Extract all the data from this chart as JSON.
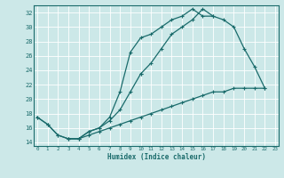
{
  "xlabel": "Humidex (Indice chaleur)",
  "bg_color": "#cce8e8",
  "line_color": "#1a6b6b",
  "grid_color": "#ffffff",
  "x": [
    0,
    1,
    2,
    3,
    4,
    5,
    6,
    7,
    8,
    9,
    10,
    11,
    12,
    13,
    14,
    15,
    16,
    17,
    18,
    19,
    20,
    21,
    22,
    23
  ],
  "ylim": [
    13.5,
    33
  ],
  "xlim": [
    -0.3,
    23.3
  ],
  "yticks": [
    14,
    16,
    18,
    20,
    22,
    24,
    26,
    28,
    30,
    32
  ],
  "curve1": [
    17.5,
    16.5,
    15.0,
    14.5,
    14.5,
    15.5,
    16.0,
    17.0,
    18.5,
    21.0,
    23.5,
    null,
    null,
    null,
    null,
    null,
    null,
    null,
    null,
    null,
    null,
    null,
    null,
    null
  ],
  "curve2": [
    17.5,
    16.5,
    15.0,
    14.5,
    14.5,
    15.5,
    16.0,
    17.5,
    21.0,
    26.5,
    28.5,
    29.0,
    30.0,
    31.0,
    31.5,
    32.5,
    31.5,
    31.5,
    null,
    null,
    null,
    null,
    null,
    null
  ],
  "curve3": [
    null,
    null,
    null,
    null,
    null,
    null,
    null,
    null,
    null,
    null,
    23.5,
    25.0,
    27.0,
    29.0,
    30.0,
    31.0,
    32.5,
    31.5,
    31.0,
    30.0,
    27.0,
    24.5,
    21.5,
    null
  ],
  "curve4": [
    null,
    null,
    null,
    14.5,
    14.5,
    15.0,
    15.5,
    16.0,
    16.5,
    17.0,
    17.5,
    18.0,
    18.5,
    19.0,
    19.5,
    20.0,
    20.5,
    21.0,
    21.0,
    21.5,
    21.5,
    21.5,
    21.5,
    null
  ]
}
